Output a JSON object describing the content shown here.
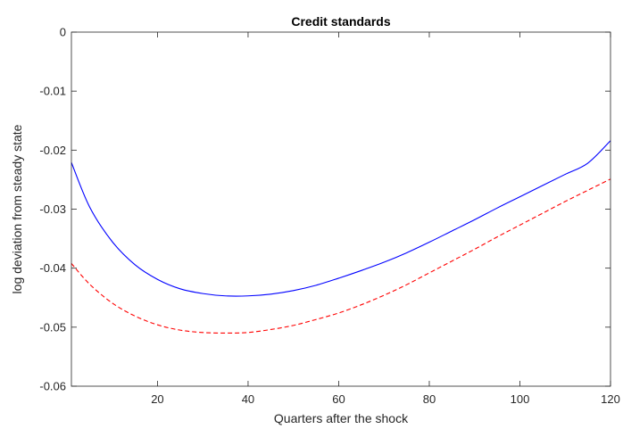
{
  "chart_data": {
    "type": "line",
    "title": "Credit standards",
    "xlabel": "Quarters after the shock",
    "ylabel": "log deviation from steady state",
    "xlim": [
      1,
      120
    ],
    "ylim": [
      -0.06,
      0
    ],
    "xticks": [
      20,
      40,
      60,
      80,
      100,
      120
    ],
    "yticks": [
      0,
      -0.01,
      -0.02,
      -0.03,
      -0.04,
      -0.05,
      -0.06
    ],
    "ytick_labels": [
      "0",
      "-0.01",
      "-0.02",
      "-0.03",
      "-0.04",
      "-0.05",
      "-0.06"
    ],
    "grid": false,
    "series": [
      {
        "color": "#0000ff",
        "style": "solid",
        "x": [
          1,
          5,
          10,
          15,
          20,
          25,
          30,
          35,
          40,
          45,
          50,
          55,
          60,
          65,
          70,
          75,
          80,
          85,
          90,
          95,
          100,
          105,
          110,
          115,
          120
        ],
        "y": [
          -0.0221,
          -0.0296,
          -0.0355,
          -0.0394,
          -0.0419,
          -0.0435,
          -0.0443,
          -0.0447,
          -0.0447,
          -0.0444,
          -0.0438,
          -0.0429,
          -0.0417,
          -0.0404,
          -0.039,
          -0.0374,
          -0.0356,
          -0.0337,
          -0.0318,
          -0.0298,
          -0.0279,
          -0.026,
          -0.0241,
          -0.0222,
          -0.0184
        ]
      },
      {
        "color": "#ff0000",
        "style": "dashed",
        "x": [
          1,
          5,
          10,
          15,
          20,
          25,
          30,
          35,
          40,
          45,
          50,
          55,
          60,
          65,
          70,
          75,
          80,
          85,
          90,
          95,
          100,
          105,
          110,
          115,
          120
        ],
        "y": [
          -0.0392,
          -0.0427,
          -0.0459,
          -0.0481,
          -0.0496,
          -0.0505,
          -0.0509,
          -0.051,
          -0.0509,
          -0.0504,
          -0.0497,
          -0.0487,
          -0.0476,
          -0.0462,
          -0.0446,
          -0.0428,
          -0.0408,
          -0.0388,
          -0.0368,
          -0.0347,
          -0.0327,
          -0.0307,
          -0.0287,
          -0.0268,
          -0.0249
        ]
      }
    ]
  }
}
